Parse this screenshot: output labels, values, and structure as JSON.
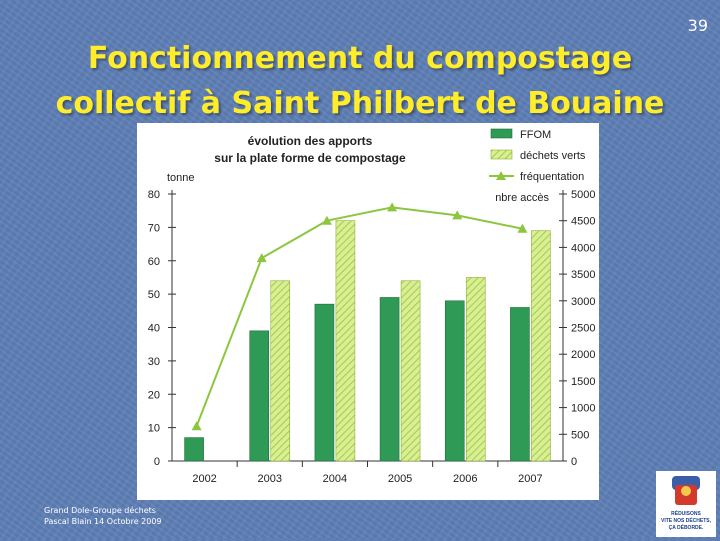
{
  "slide": {
    "number": "39",
    "title_line1": "Fonctionnement du compostage",
    "title_line2": "collectif à Saint Philbert de Bouaine",
    "footer_line1": "Grand Dole-Groupe déchets",
    "footer_line2": "Pascal Blain 14 Octobre 2009",
    "logo_text": [
      "RÉDUISONS",
      "VITE NOS DÉCHETS,",
      "ÇA DÉBORDE."
    ]
  },
  "colors": {
    "ffom": "#2e9a55",
    "dechets_verts": "#c7e27a",
    "frequentation": "#8cc63f",
    "title": "#ffec2a"
  },
  "chart_data": {
    "type": "bar",
    "title_line1": "évolution des apports",
    "title_line2": "sur la plate forme de compostage",
    "categories": [
      "2002",
      "2003",
      "2004",
      "2005",
      "2006",
      "2007"
    ],
    "ylabel": "tonne",
    "ylim": [
      0,
      80
    ],
    "yticks": [
      0,
      10,
      20,
      30,
      40,
      50,
      60,
      70,
      80
    ],
    "y2label": "nbre accès",
    "y2lim": [
      0,
      5000
    ],
    "y2ticks": [
      0,
      500,
      1000,
      1500,
      2000,
      2500,
      3000,
      3500,
      4000,
      4500,
      5000
    ],
    "legend_position": "top-right",
    "series": [
      {
        "name": "FFOM",
        "kind": "bar",
        "axis": "left",
        "values": [
          7,
          39,
          47,
          49,
          48,
          46
        ]
      },
      {
        "name": "déchets verts",
        "kind": "bar",
        "axis": "left",
        "values": [
          null,
          54,
          72,
          54,
          55,
          69
        ]
      },
      {
        "name": "fréquentation",
        "kind": "line",
        "axis": "right",
        "values": [
          650,
          3800,
          4500,
          4750,
          4600,
          4350
        ]
      }
    ]
  }
}
